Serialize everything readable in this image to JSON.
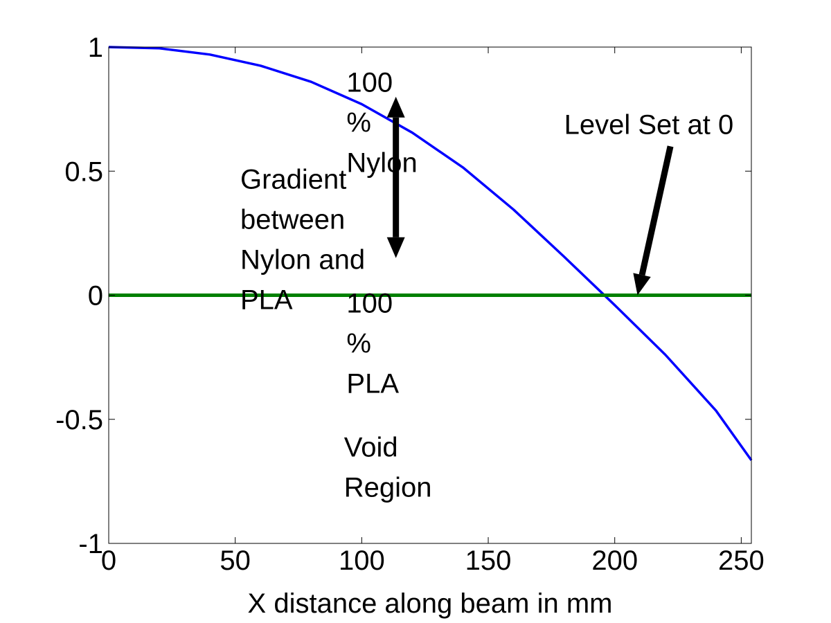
{
  "chart_data": {
    "type": "line",
    "title": "",
    "xlabel": "X distance along beam in mm",
    "ylabel": "",
    "xlim": [
      0,
      254
    ],
    "ylim": [
      -1,
      1
    ],
    "x_ticks": [
      0,
      50,
      100,
      150,
      200,
      250
    ],
    "y_ticks": [
      -1,
      -0.5,
      0,
      0.5,
      1
    ],
    "x_tick_labels": [
      "0",
      "50",
      "100",
      "150",
      "200",
      "250"
    ],
    "y_tick_labels": [
      "-1",
      "-0.5",
      "0",
      "0.5",
      "1"
    ],
    "grid": false,
    "legend": "none",
    "series": [
      {
        "color": "#0000ff",
        "x": [
          0,
          20,
          40,
          60,
          80,
          100,
          120,
          140,
          160,
          180,
          200,
          220,
          240,
          254
        ],
        "y": [
          1.0,
          0.995,
          0.97,
          0.925,
          0.86,
          0.77,
          0.655,
          0.515,
          0.345,
          0.155,
          -0.04,
          -0.24,
          -0.465,
          -0.665
        ]
      },
      {
        "color": "#008000",
        "x": [
          0,
          254
        ],
        "y": [
          0,
          0
        ]
      }
    ],
    "annotations": [
      {
        "lines": [
          "100",
          "%",
          "Nylon"
        ],
        "x": 94,
        "y": 0.82
      },
      {
        "lines": [
          "Gradient",
          "between",
          "Nylon and",
          "PLA"
        ],
        "x": 52,
        "y": 0.43
      },
      {
        "lines": [
          "100",
          "%",
          "PLA"
        ],
        "x": 94,
        "y": -0.07
      },
      {
        "lines": [
          "Void",
          "Region"
        ],
        "x": 93,
        "y": -0.65
      },
      {
        "lines": [
          "Level Set at 0"
        ],
        "x": 180,
        "y": 0.65
      }
    ],
    "arrows": [
      {
        "type": "double",
        "color": "#000000",
        "from": [
          113.5,
          0.8
        ],
        "to": [
          113.5,
          0.15
        ]
      },
      {
        "type": "single",
        "color": "#000000",
        "from": [
          222,
          0.6
        ],
        "to": [
          209,
          0.0
        ]
      }
    ]
  }
}
